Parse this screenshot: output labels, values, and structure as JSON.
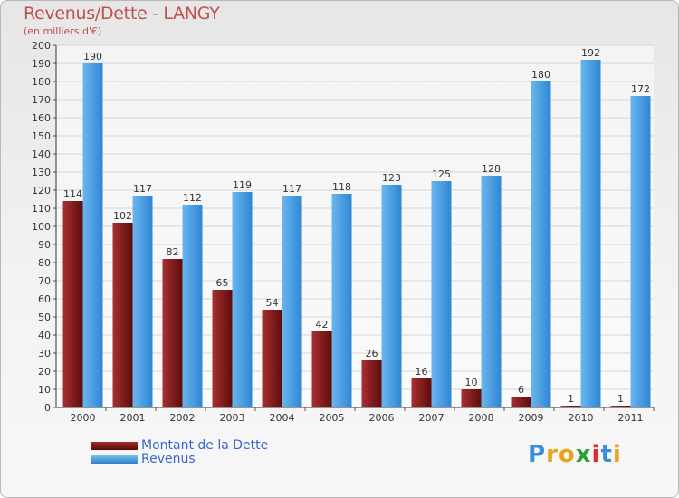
{
  "chart_data": {
    "type": "bar",
    "title": "Revenus/Dette - LANGY",
    "subtitle": "(en milliers d'€)",
    "categories": [
      "2000",
      "2001",
      "2002",
      "2003",
      "2004",
      "2005",
      "2006",
      "2007",
      "2008",
      "2009",
      "2010",
      "2011"
    ],
    "series": [
      {
        "name": "Montant de la Dette",
        "values": [
          114,
          102,
          82,
          65,
          54,
          42,
          26,
          16,
          10,
          6,
          1,
          1
        ],
        "color": "#7a1515"
      },
      {
        "name": "Revenus",
        "values": [
          190,
          117,
          112,
          119,
          117,
          118,
          123,
          125,
          128,
          180,
          192,
          172
        ],
        "color": "#4a9fe0"
      }
    ],
    "ylim": [
      0,
      200
    ],
    "ytick_step": 10,
    "grid": true,
    "legend_position": "bottom-left"
  },
  "logo": {
    "letters": [
      "P",
      "r",
      "o",
      "x",
      "i",
      "t",
      "i"
    ],
    "colors": [
      "#3a8fd8",
      "#e8a41c",
      "#e8a41c",
      "#2a9f3c",
      "#d83030",
      "#3a8fd8",
      "#e8a41c"
    ]
  }
}
